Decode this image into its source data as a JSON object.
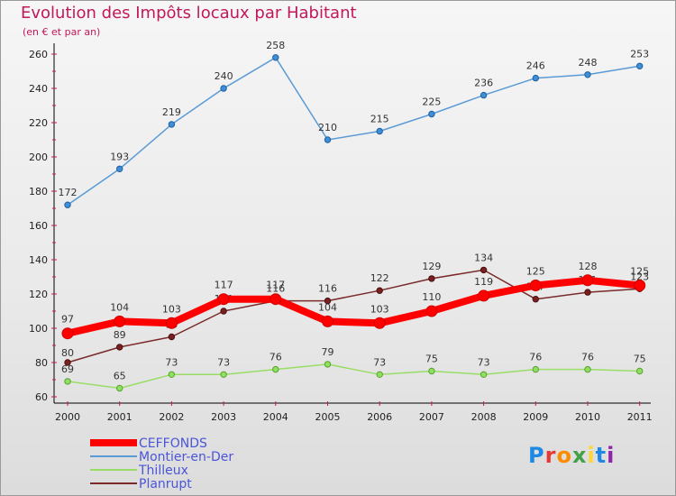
{
  "header": {
    "title": "Evolution des Impôts locaux par Habitant",
    "subtitle": "(en € et par an)"
  },
  "logo": {
    "text": "Proxiti"
  },
  "chart_data": {
    "type": "line",
    "categories": [
      "2000",
      "2001",
      "2002",
      "2003",
      "2004",
      "2005",
      "2006",
      "2007",
      "2008",
      "2009",
      "2010",
      "2011"
    ],
    "ylim": [
      60,
      260
    ],
    "yticks": [
      60,
      80,
      100,
      120,
      140,
      160,
      180,
      200,
      220,
      240,
      260
    ],
    "grid": false,
    "legend_position": "bottom-left",
    "series": [
      {
        "name": "CEFFONDS",
        "color": "#ff0000",
        "values": [
          97,
          104,
          103,
          117,
          117,
          104,
          103,
          110,
          119,
          125,
          128,
          125
        ]
      },
      {
        "name": "Montier-en-Der",
        "color": "#5b9bd5",
        "values": [
          172,
          193,
          219,
          240,
          258,
          210,
          215,
          225,
          236,
          246,
          248,
          253
        ]
      },
      {
        "name": "Thilleux",
        "color": "#99dd66",
        "values": [
          69,
          65,
          73,
          73,
          76,
          79,
          73,
          75,
          73,
          76,
          76,
          75
        ]
      },
      {
        "name": "Planrupt",
        "color": "#7a2a2a",
        "values": [
          80,
          89,
          95,
          110,
          116,
          116,
          122,
          129,
          134,
          117,
          121,
          123
        ]
      }
    ]
  }
}
